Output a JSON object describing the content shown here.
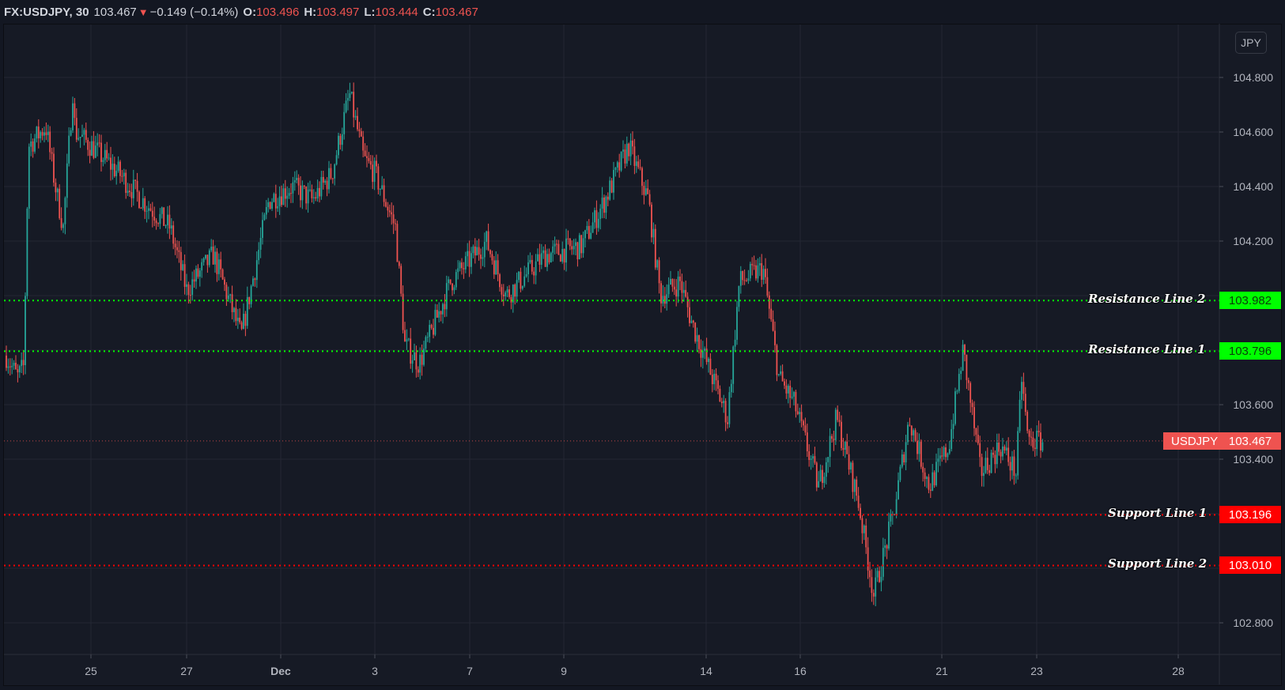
{
  "header": {
    "symbol": "FX:USDJPY, 30",
    "last": "103.467",
    "direction_icon": "triangle-down-icon",
    "change": "−0.149 (−0.14%)",
    "open_label": "O:",
    "open": "103.496",
    "high_label": "H:",
    "high": "103.497",
    "low_label": "L:",
    "low": "103.444",
    "close_label": "C:",
    "close": "103.467"
  },
  "currency_badge": "JPY",
  "colors": {
    "background": "#161a25",
    "grid": "#242733",
    "up": "#26a69a",
    "down": "#ef5350",
    "resistance": "#00ff00",
    "support": "#ff0000",
    "current_price": "#ef5350",
    "axis_text": "#b2b5be"
  },
  "price_axis": {
    "ticks": [
      "104.800",
      "104.600",
      "104.400",
      "104.200",
      "103.600",
      "103.400",
      "102.800"
    ]
  },
  "time_axis": {
    "ticks": [
      "25",
      "27",
      "Dec",
      "3",
      "7",
      "9",
      "14",
      "16",
      "21",
      "23",
      "28"
    ]
  },
  "lines": {
    "resistance_2": {
      "label": "Resistance Line 2",
      "price": "103.982"
    },
    "resistance_1": {
      "label": "Resistance Line 1",
      "price": "103.796"
    },
    "support_1": {
      "label": "Support Line 1",
      "price": "103.196"
    },
    "support_2": {
      "label": "Support Line 2",
      "price": "103.010"
    },
    "current": {
      "label": "USDJPY",
      "price": "103.467"
    }
  },
  "chart_data": {
    "type": "candlestick",
    "title": "FX:USDJPY, 30",
    "interval": "30 min",
    "xlabel": "",
    "ylabel": "JPY",
    "ylim": [
      102.7,
      104.98
    ],
    "x_tick_labels": [
      "25",
      "27",
      "Dec",
      "3",
      "7",
      "9",
      "14",
      "16",
      "21",
      "23",
      "28"
    ],
    "y_tick_labels": [
      104.8,
      104.6,
      104.4,
      104.2,
      103.6,
      103.4,
      102.8
    ],
    "horizontal_lines": [
      {
        "name": "Resistance Line 2",
        "value": 103.982,
        "color": "#00ff00",
        "style": "dotted"
      },
      {
        "name": "Resistance Line 1",
        "value": 103.796,
        "color": "#00ff00",
        "style": "dotted"
      },
      {
        "name": "Support Line 1",
        "value": 103.196,
        "color": "#ff0000",
        "style": "dotted"
      },
      {
        "name": "Support Line 2",
        "value": 103.01,
        "color": "#ff0000",
        "style": "dotted"
      },
      {
        "name": "USDJPY last",
        "value": 103.467,
        "color": "#ef5350",
        "style": "dotted"
      }
    ],
    "ohlc_last": {
      "open": 103.496,
      "high": 103.497,
      "low": 103.444,
      "close": 103.467
    },
    "price_path": [
      {
        "date": "Nov 23",
        "price": 103.78
      },
      {
        "date": "Nov 23",
        "price": 103.7
      },
      {
        "date": "Nov 24",
        "price": 103.74
      },
      {
        "date": "Nov 24",
        "price": 104.55
      },
      {
        "date": "Nov 24",
        "price": 104.62
      },
      {
        "date": "Nov 24",
        "price": 104.4
      },
      {
        "date": "Nov 24",
        "price": 104.25
      },
      {
        "date": "Nov 24",
        "price": 104.6
      },
      {
        "date": "Nov 25",
        "price": 104.75
      },
      {
        "date": "Nov 25",
        "price": 104.55
      },
      {
        "date": "Nov 26",
        "price": 104.45
      },
      {
        "date": "Nov 26",
        "price": 104.35
      },
      {
        "date": "Nov 27",
        "price": 104.25
      },
      {
        "date": "Nov 27",
        "price": 104.02
      },
      {
        "date": "Nov 28",
        "price": 104.15
      },
      {
        "date": "Nov 29",
        "price": 103.85
      },
      {
        "date": "Nov 30",
        "price": 104.35
      },
      {
        "date": "Nov 30",
        "price": 104.4
      },
      {
        "date": "Dec 1",
        "price": 104.35
      },
      {
        "date": "Dec 1",
        "price": 104.45
      },
      {
        "date": "Dec 2",
        "price": 104.74
      },
      {
        "date": "Dec 2",
        "price": 104.5
      },
      {
        "date": "Dec 3",
        "price": 104.45
      },
      {
        "date": "Dec 3",
        "price": 104.25
      },
      {
        "date": "Dec 4",
        "price": 103.82
      },
      {
        "date": "Dec 4",
        "price": 103.75
      },
      {
        "date": "Dec 5",
        "price": 104.05
      },
      {
        "date": "Dec 6",
        "price": 104.2
      },
      {
        "date": "Dec 7",
        "price": 104.0
      },
      {
        "date": "Dec 8",
        "price": 104.15
      },
      {
        "date": "Dec 9",
        "price": 104.18
      },
      {
        "date": "Dec 10",
        "price": 104.35
      },
      {
        "date": "Dec 11",
        "price": 104.55
      },
      {
        "date": "Dec 11",
        "price": 104.35
      },
      {
        "date": "Dec 12",
        "price": 104.0
      },
      {
        "date": "Dec 13",
        "price": 104.05
      },
      {
        "date": "Dec 13",
        "price": 103.9
      },
      {
        "date": "Dec 14",
        "price": 103.55
      },
      {
        "date": "Dec 14",
        "price": 104.05
      },
      {
        "date": "Dec 15",
        "price": 104.1
      },
      {
        "date": "Dec 15",
        "price": 103.7
      },
      {
        "date": "Dec 16",
        "price": 103.6
      },
      {
        "date": "Dec 16",
        "price": 103.3
      },
      {
        "date": "Dec 17",
        "price": 103.55
      },
      {
        "date": "Dec 17",
        "price": 103.25
      },
      {
        "date": "Dec 18",
        "price": 102.9
      },
      {
        "date": "Dec 18",
        "price": 103.2
      },
      {
        "date": "Dec 19",
        "price": 103.55
      },
      {
        "date": "Dec 20",
        "price": 103.3
      },
      {
        "date": "Dec 21",
        "price": 103.45
      },
      {
        "date": "Dec 21",
        "price": 103.8
      },
      {
        "date": "Dec 22",
        "price": 103.35
      },
      {
        "date": "Dec 22",
        "price": 103.45
      },
      {
        "date": "Dec 23",
        "price": 103.35
      },
      {
        "date": "Dec 23",
        "price": 103.7
      },
      {
        "date": "Dec 23",
        "price": 103.467
      }
    ]
  }
}
